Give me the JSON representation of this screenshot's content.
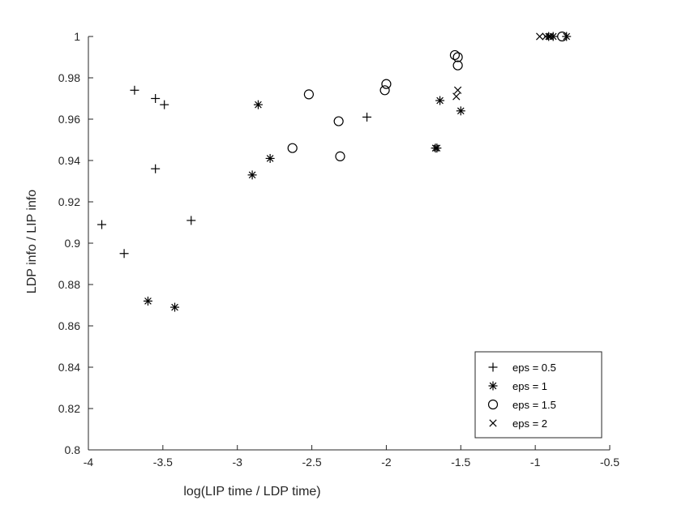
{
  "chart_data": {
    "type": "scatter",
    "title": "",
    "xlabel": "log(LIP time / LDP time)",
    "ylabel": "LDP info / LIP info",
    "xlim": [
      -4,
      -0.5
    ],
    "ylim": [
      0.8,
      1
    ],
    "xticks": [
      -4,
      -3.5,
      -3,
      -2.5,
      -2,
      -1.5,
      -1,
      -0.5
    ],
    "xtick_labels": [
      "-4",
      "-3.5",
      "-3",
      "-2.5",
      "-2",
      "-1.5",
      "-1",
      "-0.5"
    ],
    "yticks": [
      0.8,
      0.82,
      0.84,
      0.86,
      0.88,
      0.9,
      0.92,
      0.94,
      0.96,
      0.98,
      1
    ],
    "ytick_labels": [
      "0.8",
      "0.82",
      "0.84",
      "0.86",
      "0.88",
      "0.9",
      "0.92",
      "0.94",
      "0.96",
      "0.98",
      "1"
    ],
    "grid": false,
    "legend_position": "bottom-right",
    "series": [
      {
        "name": "eps = 0.5",
        "marker": "plus",
        "points": [
          [
            -3.91,
            0.909
          ],
          [
            -3.76,
            0.895
          ],
          [
            -3.69,
            0.974
          ],
          [
            -3.55,
            0.97
          ],
          [
            -3.49,
            0.967
          ],
          [
            -3.55,
            0.936
          ],
          [
            -3.31,
            0.911
          ],
          [
            -2.13,
            0.961
          ]
        ]
      },
      {
        "name": "eps = 1",
        "marker": "asterisk",
        "points": [
          [
            -3.6,
            0.872
          ],
          [
            -3.42,
            0.869
          ],
          [
            -2.9,
            0.933
          ],
          [
            -2.86,
            0.967
          ],
          [
            -2.78,
            0.941
          ],
          [
            -1.67,
            0.946
          ],
          [
            -1.66,
            0.946
          ],
          [
            -1.64,
            0.969
          ],
          [
            -1.5,
            0.964
          ],
          [
            -0.91,
            1
          ],
          [
            -0.88,
            1
          ],
          [
            -0.79,
            1
          ]
        ]
      },
      {
        "name": "eps = 1.5",
        "marker": "circle",
        "points": [
          [
            -2.63,
            0.946
          ],
          [
            -2.52,
            0.972
          ],
          [
            -2.32,
            0.959
          ],
          [
            -2.31,
            0.942
          ],
          [
            -2.01,
            0.974
          ],
          [
            -2.0,
            0.977
          ],
          [
            -1.54,
            0.991
          ],
          [
            -1.52,
            0.99
          ],
          [
            -1.52,
            0.986
          ],
          [
            -0.82,
            1
          ]
        ]
      },
      {
        "name": "eps = 2",
        "marker": "cross",
        "points": [
          [
            -1.53,
            0.971
          ],
          [
            -1.52,
            0.974
          ],
          [
            -0.97,
            1
          ],
          [
            -0.93,
            1
          ],
          [
            -0.9,
            1
          ]
        ]
      }
    ]
  }
}
